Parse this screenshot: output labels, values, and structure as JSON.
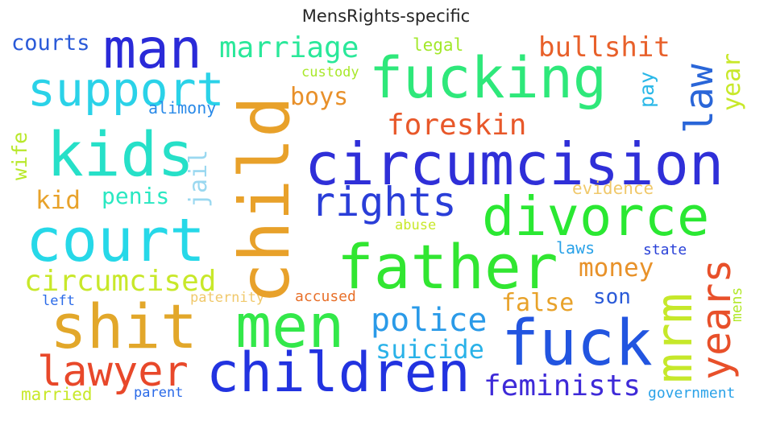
{
  "title": "MensRights-specific",
  "words": {
    "circumcision": {
      "text": "circumcision",
      "color": "#2f2fd8"
    },
    "fucking": {
      "text": "fucking",
      "color": "#2ee87a"
    },
    "child": {
      "text": "child",
      "color": "#e8a12a"
    },
    "divorce": {
      "text": "divorce",
      "color": "#2ae832"
    },
    "father": {
      "text": "father",
      "color": "#31e631"
    },
    "men": {
      "text": "men",
      "color": "#33e84a"
    },
    "children": {
      "text": "children",
      "color": "#2233e0"
    },
    "fuck": {
      "text": "fuck",
      "color": "#2255e0"
    },
    "court": {
      "text": "court",
      "color": "#26d8e8"
    },
    "kids": {
      "text": "kids",
      "color": "#26e0c8"
    },
    "man": {
      "text": "man",
      "color": "#2a2ad8"
    },
    "shit": {
      "text": "shit",
      "color": "#e2a72a"
    },
    "support": {
      "text": "support",
      "color": "#2ad2e8"
    },
    "rights": {
      "text": "rights",
      "color": "#2a3ed8"
    },
    "mrm": {
      "text": "mrm",
      "color": "#c6e82a"
    },
    "years": {
      "text": "years",
      "color": "#e8502a"
    },
    "lawyer": {
      "text": "lawyer",
      "color": "#e8482a"
    },
    "police": {
      "text": "police",
      "color": "#2a9ae8"
    },
    "law": {
      "text": "law",
      "color": "#2a66d8"
    },
    "foreskin": {
      "text": "foreskin",
      "color": "#e8582a"
    },
    "bullshit": {
      "text": "bullshit",
      "color": "#e8602a"
    },
    "marriage": {
      "text": "marriage",
      "color": "#2ae89a"
    },
    "circumcised": {
      "text": "circumcised",
      "color": "#c8e82a"
    },
    "feminists": {
      "text": "feminists",
      "color": "#3e2ad8"
    },
    "suicide": {
      "text": "suicide",
      "color": "#2ab2e8"
    },
    "money": {
      "text": "money",
      "color": "#e8922a"
    },
    "false": {
      "text": "false",
      "color": "#e8a22a"
    },
    "boys": {
      "text": "boys",
      "color": "#e8902a"
    },
    "kid": {
      "text": "kid",
      "color": "#e8a22a"
    },
    "penis": {
      "text": "penis",
      "color": "#2ae8c2"
    },
    "courts": {
      "text": "courts",
      "color": "#2a5ad8"
    },
    "jail": {
      "text": "jail",
      "color": "#9ad8f0"
    },
    "wife": {
      "text": "wife",
      "color": "#b8e82a"
    },
    "year": {
      "text": "year",
      "color": "#c8e82a"
    },
    "pay": {
      "text": "pay",
      "color": "#2ab8e8"
    },
    "son": {
      "text": "son",
      "color": "#2a5ad8"
    },
    "laws": {
      "text": "laws",
      "color": "#2aa2e8"
    },
    "legal": {
      "text": "legal",
      "color": "#a2e82a"
    },
    "custody": {
      "text": "custody",
      "color": "#a8e82a"
    },
    "alimony": {
      "text": "alimony",
      "color": "#2a8ae8"
    },
    "evidence": {
      "text": "evidence",
      "color": "#f0c86a"
    },
    "abuse": {
      "text": "abuse",
      "color": "#c8e82a"
    },
    "state": {
      "text": "state",
      "color": "#2a42d8"
    },
    "mens": {
      "text": "mens",
      "color": "#b2e82a"
    },
    "left": {
      "text": "left",
      "color": "#2a6ae8"
    },
    "paternity": {
      "text": "paternity",
      "color": "#f0c86a"
    },
    "accused": {
      "text": "accused",
      "color": "#e8702a"
    },
    "married": {
      "text": "married",
      "color": "#c8e82a"
    },
    "parent": {
      "text": "parent",
      "color": "#2a6ae8"
    },
    "government": {
      "text": "government",
      "color": "#2aa2e8"
    }
  }
}
